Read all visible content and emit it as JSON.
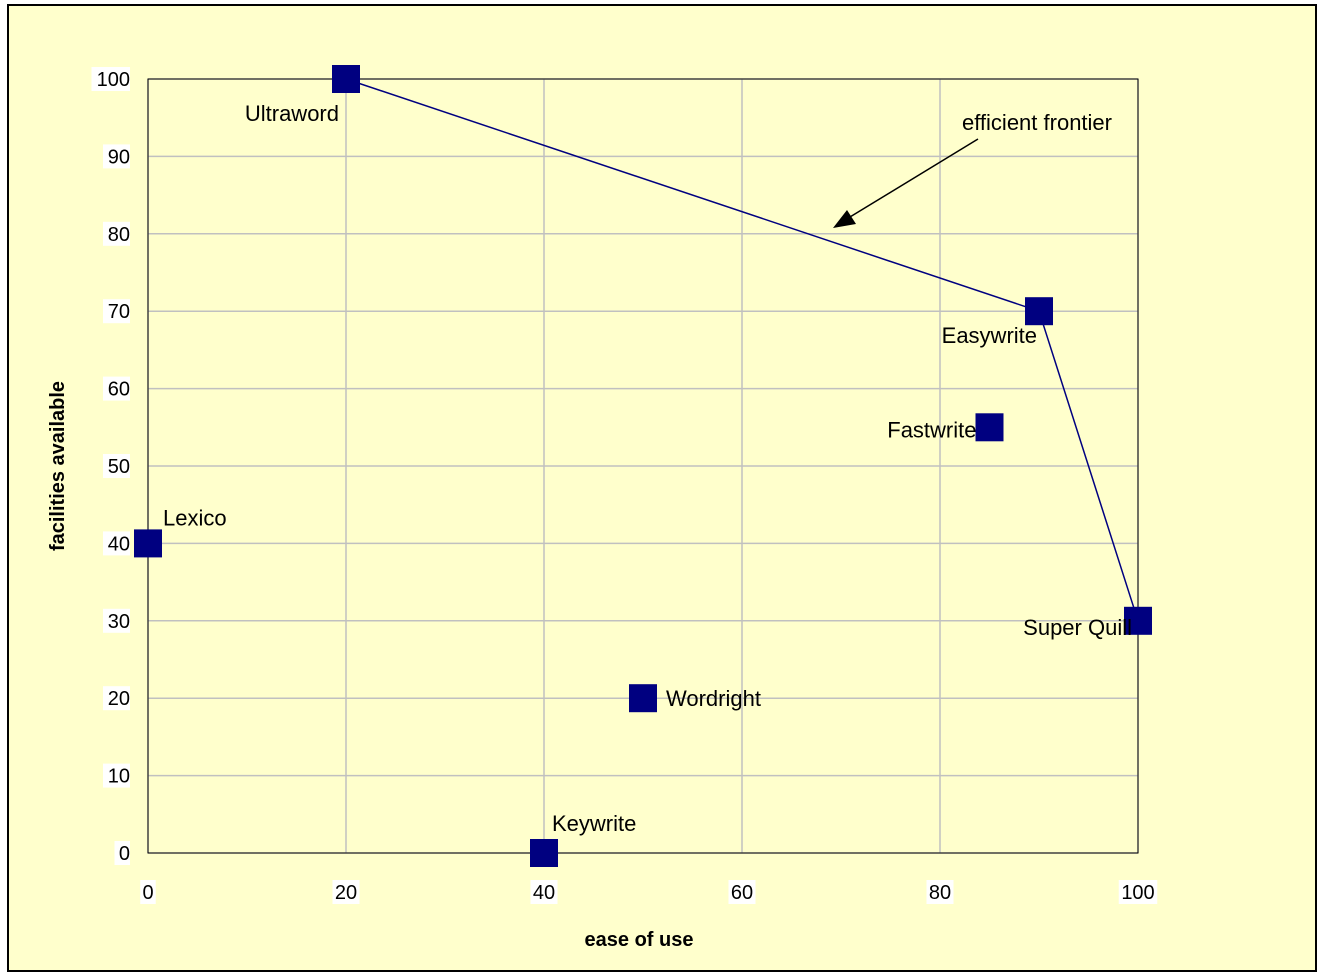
{
  "chart_data": {
    "type": "scatter",
    "title": "",
    "xlabel": "ease of use",
    "ylabel": "facilities available",
    "xlim": [
      0,
      100
    ],
    "ylim": [
      0,
      100
    ],
    "xticks": [
      0,
      20,
      40,
      60,
      80,
      100
    ],
    "yticks": [
      0,
      10,
      20,
      30,
      40,
      50,
      60,
      70,
      80,
      90,
      100
    ],
    "grid": true,
    "background_color": "#ffffcc",
    "marker_color": "#000080",
    "line_color": "#000080",
    "points": [
      {
        "label": "Ultraword",
        "x": 20,
        "y": 100
      },
      {
        "label": "Easywrite",
        "x": 90,
        "y": 70
      },
      {
        "label": "Fastwrite",
        "x": 85,
        "y": 55
      },
      {
        "label": "Lexico",
        "x": 0,
        "y": 40
      },
      {
        "label": "Super Quill",
        "x": 100,
        "y": 30
      },
      {
        "label": "Wordright",
        "x": 50,
        "y": 20
      },
      {
        "label": "Keywrite",
        "x": 40,
        "y": 0
      }
    ],
    "frontier": {
      "label": "efficient frontier",
      "points": [
        [
          20,
          100
        ],
        [
          90,
          70
        ],
        [
          100,
          30
        ]
      ]
    }
  }
}
